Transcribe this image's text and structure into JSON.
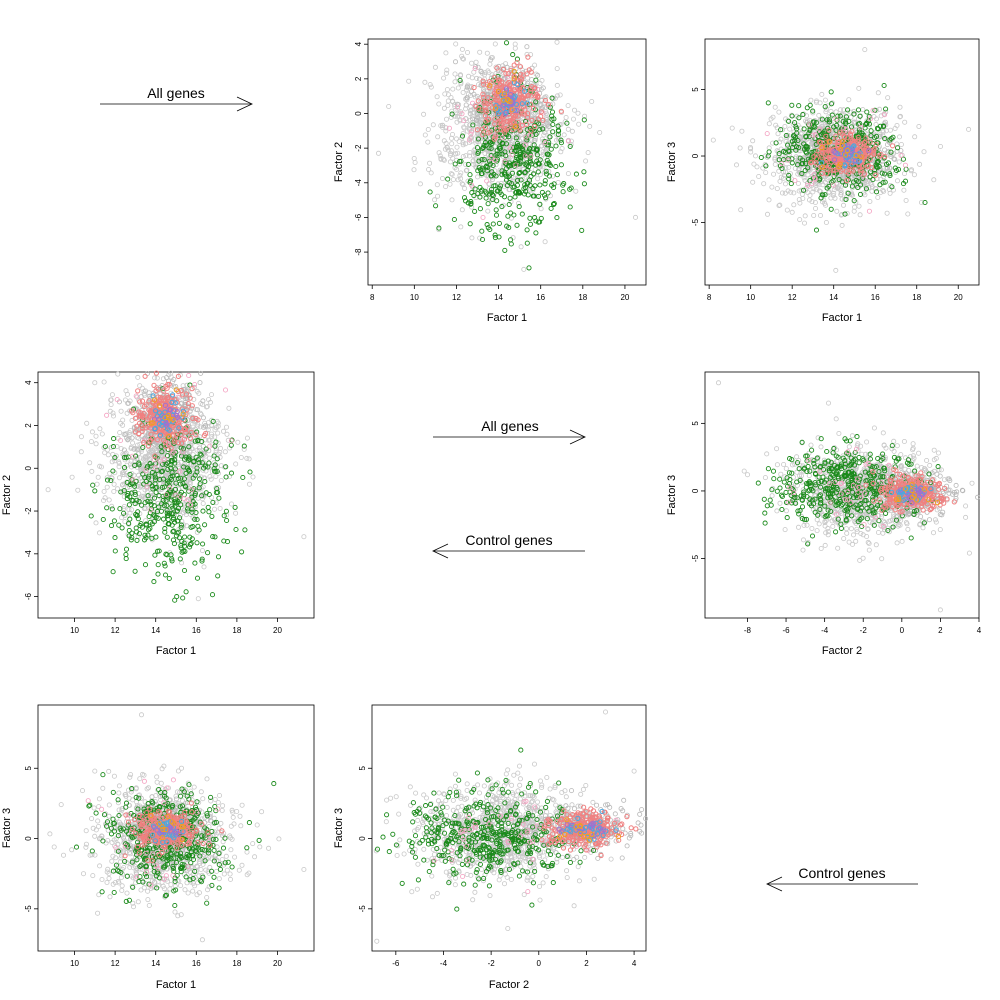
{
  "colors": {
    "grey": "#c8c8c8",
    "green": "#1a8a1a",
    "pink": "#f08080",
    "light_pink": "#f4a0c0",
    "blue": "#4aa8e0",
    "orange": "#f0a020",
    "violet": "#a070d0"
  },
  "arrows": [
    {
      "label": "All genes",
      "direction": "right"
    },
    {
      "label": "All genes",
      "direction": "right"
    },
    {
      "label": "Control genes",
      "direction": "left"
    },
    {
      "label": "Control genes",
      "direction": "left"
    }
  ],
  "chart_data": [
    {
      "type": "scatter",
      "title": "",
      "xlabel": "Factor 1",
      "ylabel": "Factor 2",
      "xlim": [
        7.8,
        21
      ],
      "ylim": [
        -9.9,
        4.3
      ],
      "xticks": [
        8,
        10,
        12,
        14,
        16,
        18,
        20
      ],
      "yticks": [
        4,
        2,
        0,
        -2,
        -4,
        -6,
        -8
      ],
      "center_grey": [
        14,
        -1
      ],
      "spread_grey": [
        1.5,
        2.0
      ],
      "center_green": [
        14.6,
        -2.6
      ],
      "spread_green": [
        1.3,
        2.0
      ],
      "center_pink": [
        14.5,
        0.6
      ],
      "spread_pink": [
        0.7,
        0.8
      ],
      "outliers": [
        [
          20.5,
          -6
        ],
        [
          8.3,
          -2.3
        ],
        [
          10.5,
          1.8
        ],
        [
          11.5,
          3.5
        ],
        [
          15.2,
          -9
        ]
      ]
    },
    {
      "type": "scatter",
      "title": "",
      "xlabel": "Factor 1",
      "ylabel": "Factor 3",
      "xlim": [
        7.8,
        21
      ],
      "ylim": [
        -9.7,
        8.8
      ],
      "xticks": [
        8,
        10,
        12,
        14,
        16,
        18,
        20
      ],
      "yticks": [
        5,
        0,
        -5
      ],
      "center_grey": [
        14,
        0
      ],
      "spread_grey": [
        1.6,
        1.8
      ],
      "center_green": [
        14.2,
        0.4
      ],
      "spread_green": [
        1.4,
        1.6
      ],
      "center_pink": [
        14.6,
        0.1
      ],
      "spread_pink": [
        0.7,
        0.7
      ],
      "outliers": [
        [
          20.5,
          2
        ],
        [
          14.1,
          -8.6
        ],
        [
          15.5,
          8
        ],
        [
          10,
          0.3
        ],
        [
          8.2,
          1.2
        ]
      ]
    },
    {
      "type": "scatter",
      "title": "",
      "xlabel": "Factor 1",
      "ylabel": "Factor 2",
      "xlim": [
        8.2,
        21.8
      ],
      "ylim": [
        -7,
        4.5
      ],
      "xticks": [
        10,
        12,
        14,
        16,
        18,
        20
      ],
      "yticks": [
        4,
        2,
        0,
        -2,
        -4,
        -6
      ],
      "center_grey": [
        14.4,
        0.5
      ],
      "spread_grey": [
        1.5,
        1.7
      ],
      "center_green": [
        14.8,
        -1.3
      ],
      "spread_green": [
        1.4,
        1.7
      ],
      "center_pink": [
        14.5,
        2.4
      ],
      "spread_pink": [
        0.7,
        0.7
      ],
      "outliers": [
        [
          21.3,
          -3.2
        ],
        [
          8.7,
          -1
        ],
        [
          10.6,
          2.1
        ],
        [
          11,
          4
        ],
        [
          16.1,
          -6.1
        ]
      ]
    },
    {
      "type": "scatter",
      "title": "",
      "xlabel": "Factor 2",
      "ylabel": "Factor 3",
      "xlim": [
        -10.2,
        4
      ],
      "ylim": [
        -9.4,
        8.8
      ],
      "xticks": [
        -8,
        -6,
        -4,
        -2,
        0,
        2,
        4
      ],
      "yticks": [
        5,
        0,
        -5
      ],
      "center_grey": [
        -2,
        0
      ],
      "spread_grey": [
        1.9,
        1.6
      ],
      "center_green": [
        -3,
        0.3
      ],
      "spread_green": [
        1.7,
        1.5
      ],
      "center_pink": [
        0.5,
        -0.2
      ],
      "spread_pink": [
        0.8,
        0.6
      ],
      "outliers": [
        [
          -9.5,
          8
        ],
        [
          2,
          -8.8
        ],
        [
          3.5,
          -4.6
        ],
        [
          -3.8,
          6.5
        ],
        [
          -8,
          1.2
        ]
      ]
    },
    {
      "type": "scatter",
      "title": "",
      "xlabel": "Factor 1",
      "ylabel": "Factor 3",
      "xlim": [
        8.2,
        21.8
      ],
      "ylim": [
        -8,
        9.5
      ],
      "xticks": [
        10,
        12,
        14,
        16,
        18,
        20
      ],
      "yticks": [
        5,
        0,
        -5
      ],
      "center_grey": [
        14.3,
        0
      ],
      "spread_grey": [
        1.6,
        1.8
      ],
      "center_green": [
        14.5,
        0
      ],
      "spread_green": [
        1.5,
        1.6
      ],
      "center_pink": [
        14.5,
        0.6
      ],
      "spread_pink": [
        0.7,
        0.7
      ],
      "outliers": [
        [
          21.3,
          -2.2
        ],
        [
          13.3,
          8.8
        ],
        [
          16.3,
          -7.2
        ],
        [
          9,
          -0.6
        ],
        [
          11,
          4.8
        ]
      ]
    },
    {
      "type": "scatter",
      "title": "",
      "xlabel": "Factor 2",
      "ylabel": "Factor 3",
      "xlim": [
        -7,
        4.5
      ],
      "ylim": [
        -8,
        9.5
      ],
      "xticks": [
        -6,
        -4,
        -2,
        0,
        2,
        4
      ],
      "yticks": [
        5,
        0,
        -5
      ],
      "center_grey": [
        -1.5,
        0.5
      ],
      "spread_grey": [
        1.8,
        1.7
      ],
      "center_green": [
        -2.2,
        0.2
      ],
      "spread_green": [
        1.7,
        1.5
      ],
      "center_pink": [
        2,
        0.7
      ],
      "spread_pink": [
        0.8,
        0.6
      ],
      "outliers": [
        [
          -6.8,
          -7.3
        ],
        [
          2.8,
          9
        ],
        [
          -6.4,
          1.2
        ],
        [
          4,
          4.8
        ],
        [
          -1.3,
          -6.4
        ]
      ]
    }
  ]
}
